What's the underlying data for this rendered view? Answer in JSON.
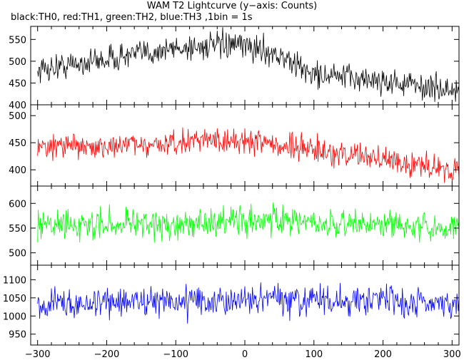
{
  "chart_data": {
    "type": "line",
    "title": "WAM T2 Lightcurve (y−axis: Counts)",
    "subtitle": "black:TH0, red:TH1, green:TH2, blue:TH3 ,1bin = 1s",
    "xlabel": "",
    "xlim": [
      -310,
      310
    ],
    "x_ticks": [
      -300,
      -200,
      -100,
      0,
      100,
      200,
      300
    ],
    "x_tick_labels": [
      "−300",
      "−200",
      "−100",
      "0",
      "100",
      "200",
      "300"
    ],
    "x_range_data": [
      -300,
      310
    ],
    "panels": [
      {
        "name": "TH0",
        "color": "#000000",
        "ylim": [
          400,
          580
        ],
        "y_ticks": [
          400,
          450,
          500,
          550
        ],
        "trend": [
          [
            -300,
            480
          ],
          [
            -200,
            505
          ],
          [
            -100,
            530
          ],
          [
            -50,
            535
          ],
          [
            0,
            535
          ],
          [
            40,
            520
          ],
          [
            75,
            490
          ],
          [
            100,
            470
          ],
          [
            200,
            455
          ],
          [
            310,
            430
          ]
        ],
        "noise_amplitude": 28
      },
      {
        "name": "TH1",
        "color": "#ff0000",
        "ylim": [
          370,
          520
        ],
        "y_ticks": [
          400,
          450,
          500
        ],
        "trend": [
          [
            -300,
            440
          ],
          [
            -100,
            448
          ],
          [
            0,
            455
          ],
          [
            75,
            440
          ],
          [
            200,
            420
          ],
          [
            310,
            398
          ]
        ],
        "noise_amplitude": 22
      },
      {
        "name": "TH2",
        "color": "#00ff00",
        "ylim": [
          475,
          635
        ],
        "y_ticks": [
          500,
          550,
          600
        ],
        "trend": [
          [
            -300,
            555
          ],
          [
            0,
            565
          ],
          [
            310,
            550
          ]
        ],
        "noise_amplitude": 28
      },
      {
        "name": "TH3",
        "color": "#0000ff",
        "ylim": [
          920,
          1140
        ],
        "y_ticks": [
          950,
          1000,
          1050,
          1100
        ],
        "trend": [
          [
            -300,
            1030
          ],
          [
            0,
            1045
          ],
          [
            310,
            1035
          ]
        ],
        "noise_amplitude": 38
      }
    ]
  }
}
